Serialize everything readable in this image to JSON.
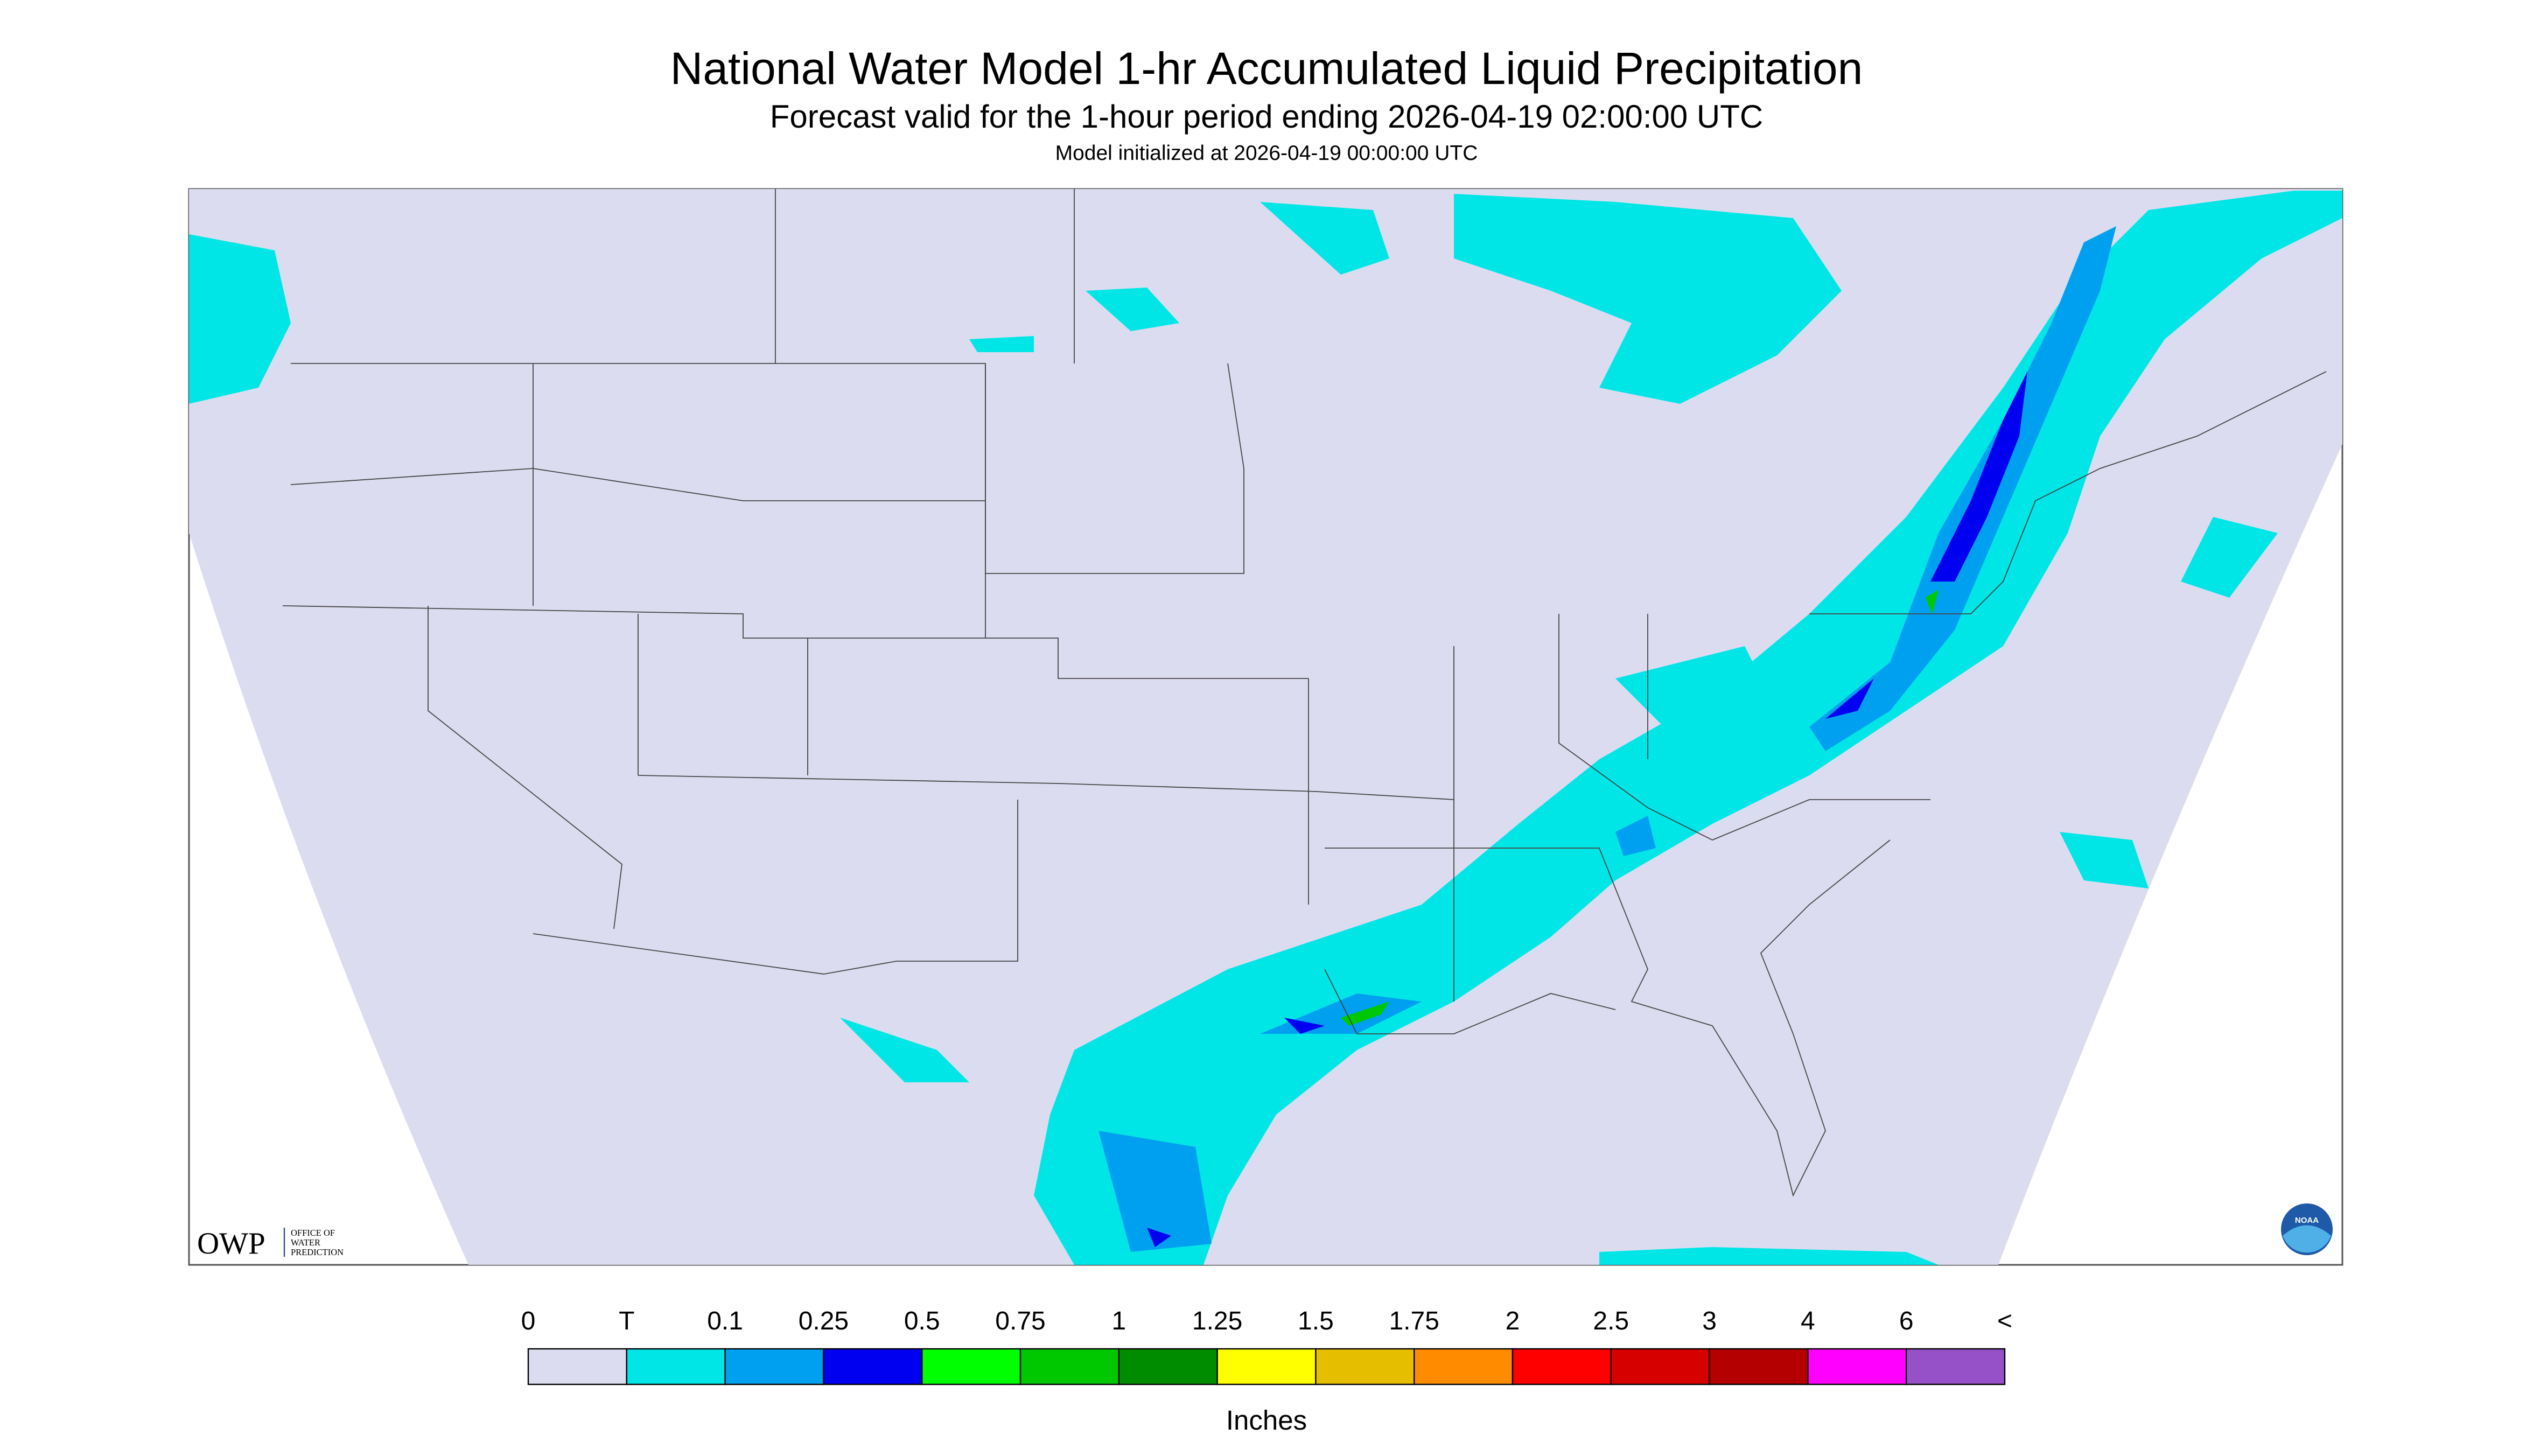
{
  "header": {
    "title": "National Water Model 1-hr Accumulated Liquid Precipitation",
    "subtitle": "Forecast valid for the 1-hour period ending 2026-04-19 02:00:00 UTC",
    "note": "Model initialized at 2026-04-19 00:00:00 UTC"
  },
  "logos": {
    "owp": "OWP",
    "owp_lines": [
      "OFFICE OF",
      "WATER",
      "PREDICTION"
    ],
    "noaa": "NOAA"
  },
  "legend": {
    "labels": [
      "0",
      "T",
      "0.1",
      "0.25",
      "0.5",
      "0.75",
      "1",
      "1.25",
      "1.5",
      "1.75",
      "2",
      "2.5",
      "3",
      "4",
      "6",
      "<"
    ],
    "colors": [
      "#dcdcf0",
      "#00e6e6",
      "#00a0f0",
      "#0000f0",
      "#00ff00",
      "#00c800",
      "#008c00",
      "#ffff00",
      "#e6be00",
      "#ff8c00",
      "#ff0000",
      "#d70000",
      "#b40000",
      "#ff00ff",
      "#9650c8"
    ],
    "units": "Inches"
  }
}
